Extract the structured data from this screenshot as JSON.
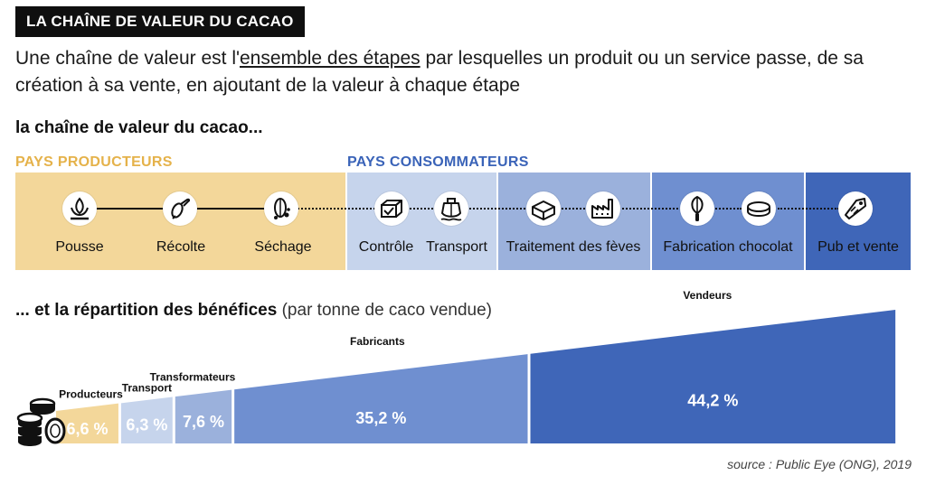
{
  "title": "LA CHAÎNE DE VALEUR DU CACAO",
  "intro": {
    "before": "Une chaîne de valeur est l'",
    "underlined": "ensemble des étapes",
    "after": " par lesquelles un produit ou un service passe, de sa création à sa vente, en ajoutant de la valeur à chaque étape"
  },
  "chain_heading": "la chaîne de valeur du cacao...",
  "groups": {
    "producers": {
      "label": "PAYS PRODUCTEURS",
      "color": "#e5b24a"
    },
    "consumers": {
      "label": "PAYS CONSOMMATEURS",
      "color": "#3a63b8"
    }
  },
  "segment_colors": [
    "#f3d79a",
    "#c6d4ec",
    "#9bb1dc",
    "#6f8fd0",
    "#3f66b8"
  ],
  "steps": [
    {
      "label": "Pousse",
      "icon": "sprout-icon"
    },
    {
      "label": "Récolte",
      "icon": "harvest-icon"
    },
    {
      "label": "Séchage",
      "icon": "cocoa-beans-icon"
    },
    {
      "label": "Contrôle",
      "icon": "checked-box-icon"
    },
    {
      "label": "Transport",
      "icon": "ship-icon"
    },
    {
      "label": "Traitement des fèves",
      "icon": "package-icon"
    },
    {
      "label": "",
      "icon": "factory-icon"
    },
    {
      "label": "Fabrication chocolat",
      "icon": "whisk-icon"
    },
    {
      "label": "",
      "icon": "chocolate-icon"
    },
    {
      "label": "Pub et vente",
      "icon": "price-tag-icon"
    }
  ],
  "shares_heading": {
    "bold": "... et la répartition des bénéfices",
    "light": " (par tonne de caco vendue)"
  },
  "chart_data": {
    "type": "area",
    "categories": [
      "Producteurs",
      "Transport",
      "Transformateurs",
      "Fabricants",
      "Vendeurs"
    ],
    "values": [
      6.6,
      6.3,
      7.6,
      35.2,
      44.2
    ],
    "value_labels": [
      "6,6 %",
      "6,3 %",
      "7,6 %",
      "35,2 %",
      "44,2 %"
    ],
    "colors": [
      "#f3d79a",
      "#c6d4ec",
      "#9bb1dc",
      "#6f8fd0",
      "#3f66b8"
    ],
    "icon": "coins-icon"
  },
  "source": "source : Public Eye (ONG), 2019"
}
